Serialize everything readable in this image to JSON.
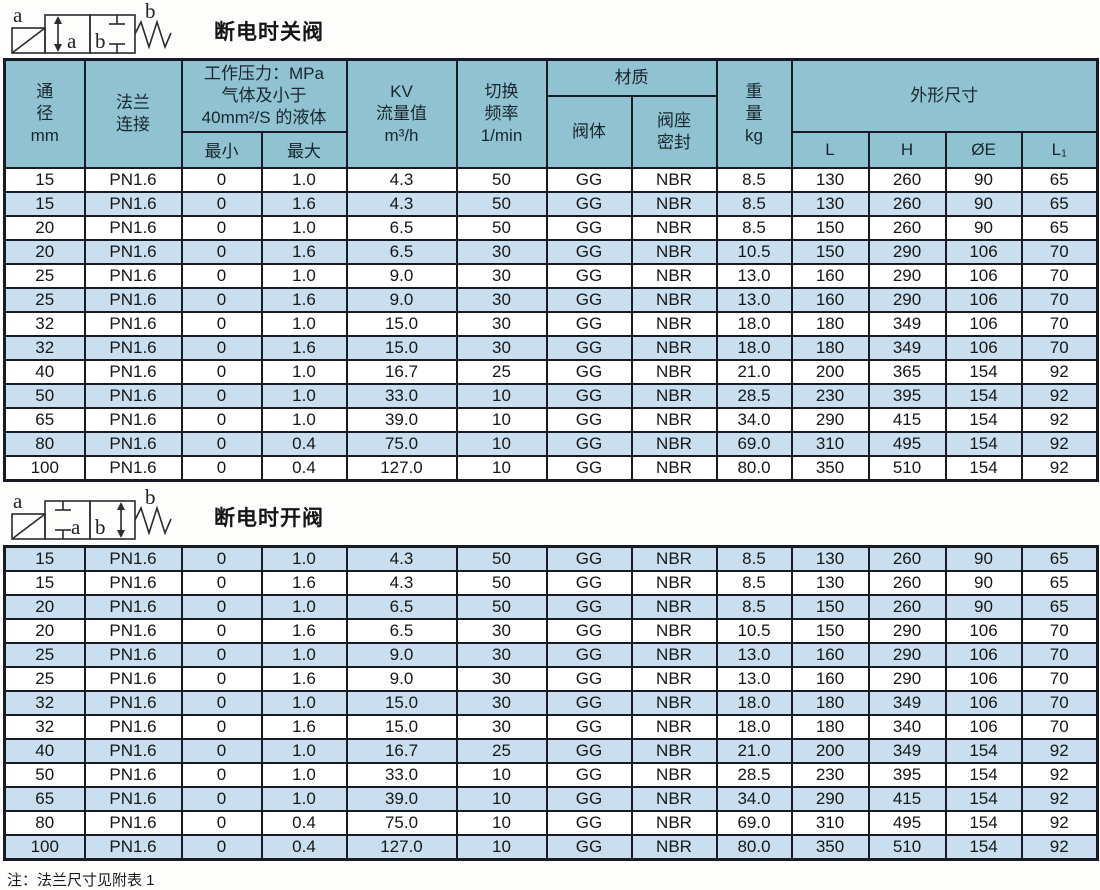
{
  "colors": {
    "header_bg": "#91C2D1",
    "stripe": "#C9DFF0",
    "border": "#161B26",
    "text": "#141414"
  },
  "section_closed": {
    "title": "断电时关阀"
  },
  "section_open": {
    "title": "断电时开阀"
  },
  "symbol": {
    "port_a": "a",
    "port_b": "b"
  },
  "header": {
    "diameter": {
      "l1": "通",
      "l2": "径",
      "l3": "mm"
    },
    "flange": {
      "l1": "法兰",
      "l2": "连接"
    },
    "pressure": {
      "l1": "工作压力：MPa",
      "l2": "气体及小于",
      "l3": "40mm²/S 的液体",
      "min": "最小",
      "max": "最大"
    },
    "kv": {
      "l1": "KV",
      "l2": "流量值",
      "l3": "m³/h"
    },
    "freq": {
      "l1": "切换",
      "l2": "频率",
      "l3": "1/min"
    },
    "material": {
      "group": "材质",
      "body": "阀体",
      "seat_l1": "阀座",
      "seat_l2": "密封"
    },
    "weight": {
      "l1": "重",
      "l2": "量",
      "l3": "kg"
    },
    "dims": {
      "group": "外形尺寸",
      "l": "L",
      "h": "H",
      "e": "ØE",
      "l1": "L₁"
    }
  },
  "table_closed": {
    "rows": [
      [
        "15",
        "PN1.6",
        "0",
        "1.0",
        "4.3",
        "50",
        "GG",
        "NBR",
        "8.5",
        "130",
        "260",
        "90",
        "65"
      ],
      [
        "15",
        "PN1.6",
        "0",
        "1.6",
        "4.3",
        "50",
        "GG",
        "NBR",
        "8.5",
        "130",
        "260",
        "90",
        "65"
      ],
      [
        "20",
        "PN1.6",
        "0",
        "1.0",
        "6.5",
        "50",
        "GG",
        "NBR",
        "8.5",
        "150",
        "260",
        "90",
        "65"
      ],
      [
        "20",
        "PN1.6",
        "0",
        "1.6",
        "6.5",
        "30",
        "GG",
        "NBR",
        "10.5",
        "150",
        "290",
        "106",
        "70"
      ],
      [
        "25",
        "PN1.6",
        "0",
        "1.0",
        "9.0",
        "30",
        "GG",
        "NBR",
        "13.0",
        "160",
        "290",
        "106",
        "70"
      ],
      [
        "25",
        "PN1.6",
        "0",
        "1.6",
        "9.0",
        "30",
        "GG",
        "NBR",
        "13.0",
        "160",
        "290",
        "106",
        "70"
      ],
      [
        "32",
        "PN1.6",
        "0",
        "1.0",
        "15.0",
        "30",
        "GG",
        "NBR",
        "18.0",
        "180",
        "349",
        "106",
        "70"
      ],
      [
        "32",
        "PN1.6",
        "0",
        "1.6",
        "15.0",
        "30",
        "GG",
        "NBR",
        "18.0",
        "180",
        "349",
        "106",
        "70"
      ],
      [
        "40",
        "PN1.6",
        "0",
        "1.0",
        "16.7",
        "25",
        "GG",
        "NBR",
        "21.0",
        "200",
        "365",
        "154",
        "92"
      ],
      [
        "50",
        "PN1.6",
        "0",
        "1.0",
        "33.0",
        "10",
        "GG",
        "NBR",
        "28.5",
        "230",
        "395",
        "154",
        "92"
      ],
      [
        "65",
        "PN1.6",
        "0",
        "1.0",
        "39.0",
        "10",
        "GG",
        "NBR",
        "34.0",
        "290",
        "415",
        "154",
        "92"
      ],
      [
        "80",
        "PN1.6",
        "0",
        "0.4",
        "75.0",
        "10",
        "GG",
        "NBR",
        "69.0",
        "310",
        "495",
        "154",
        "92"
      ],
      [
        "100",
        "PN1.6",
        "0",
        "0.4",
        "127.0",
        "10",
        "GG",
        "NBR",
        "80.0",
        "350",
        "510",
        "154",
        "92"
      ]
    ]
  },
  "table_open": {
    "rows": [
      [
        "15",
        "PN1.6",
        "0",
        "1.0",
        "4.3",
        "50",
        "GG",
        "NBR",
        "8.5",
        "130",
        "260",
        "90",
        "65"
      ],
      [
        "15",
        "PN1.6",
        "0",
        "1.6",
        "4.3",
        "50",
        "GG",
        "NBR",
        "8.5",
        "130",
        "260",
        "90",
        "65"
      ],
      [
        "20",
        "PN1.6",
        "0",
        "1.0",
        "6.5",
        "50",
        "GG",
        "NBR",
        "8.5",
        "150",
        "260",
        "90",
        "65"
      ],
      [
        "20",
        "PN1.6",
        "0",
        "1.6",
        "6.5",
        "30",
        "GG",
        "NBR",
        "10.5",
        "150",
        "290",
        "106",
        "70"
      ],
      [
        "25",
        "PN1.6",
        "0",
        "1.0",
        "9.0",
        "30",
        "GG",
        "NBR",
        "13.0",
        "160",
        "290",
        "106",
        "70"
      ],
      [
        "25",
        "PN1.6",
        "0",
        "1.6",
        "9.0",
        "30",
        "GG",
        "NBR",
        "13.0",
        "160",
        "290",
        "106",
        "70"
      ],
      [
        "32",
        "PN1.6",
        "0",
        "1.0",
        "15.0",
        "30",
        "GG",
        "NBR",
        "18.0",
        "180",
        "349",
        "106",
        "70"
      ],
      [
        "32",
        "PN1.6",
        "0",
        "1.6",
        "15.0",
        "30",
        "GG",
        "NBR",
        "18.0",
        "180",
        "340",
        "106",
        "70"
      ],
      [
        "40",
        "PN1.6",
        "0",
        "1.0",
        "16.7",
        "25",
        "GG",
        "NBR",
        "21.0",
        "200",
        "349",
        "154",
        "92"
      ],
      [
        "50",
        "PN1.6",
        "0",
        "1.0",
        "33.0",
        "10",
        "GG",
        "NBR",
        "28.5",
        "230",
        "395",
        "154",
        "92"
      ],
      [
        "65",
        "PN1.6",
        "0",
        "1.0",
        "39.0",
        "10",
        "GG",
        "NBR",
        "34.0",
        "290",
        "415",
        "154",
        "92"
      ],
      [
        "80",
        "PN1.6",
        "0",
        "0.4",
        "75.0",
        "10",
        "GG",
        "NBR",
        "69.0",
        "310",
        "495",
        "154",
        "92"
      ],
      [
        "100",
        "PN1.6",
        "0",
        "0.4",
        "127.0",
        "10",
        "GG",
        "NBR",
        "80.0",
        "350",
        "510",
        "154",
        "92"
      ]
    ]
  },
  "note": "注：法兰尺寸见附表 1"
}
